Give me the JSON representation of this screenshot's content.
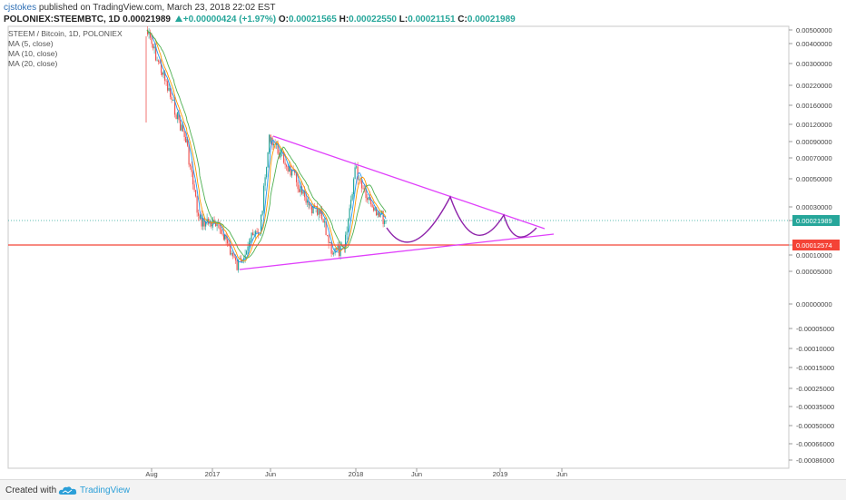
{
  "header": {
    "user": "cjstokes",
    "published_text": " published on TradingView.com, March 23, 2018 22:02 EST",
    "symbol": "POLONIEX:STEEMBTC, 1D",
    "last": "0.00021989",
    "change": "+0.00000424 (+1.97%)",
    "o_label": "O:",
    "o_val": "0.00021565",
    "h_label": "H:",
    "h_val": "0.00022550",
    "l_label": "L:",
    "l_val": "0.00021151",
    "c_label": "C:",
    "c_val": "0.00021989"
  },
  "legend": {
    "title": "STEEM / Bitcoin, 1D, POLONIEX",
    "ma5": "MA (5, close)",
    "ma10": "MA (10, close)",
    "ma20": "MA (20, close)"
  },
  "footer": {
    "created": "Created with",
    "brand": "TradingView"
  },
  "colors": {
    "candle_up": "#26a69a",
    "candle_down": "#ef5350",
    "ma5": "#2196f3",
    "ma10": "#ff9800",
    "ma20": "#4caf50",
    "trendline": "#e040fb",
    "projection": "#8e24aa",
    "support": "#f44336",
    "last_price": "#26a69a"
  },
  "chart_data": {
    "type": "candlestick",
    "title": "STEEM / Bitcoin, 1D, POLONIEX",
    "x_tick_labels": [
      "Aug",
      "2017",
      "Jun",
      "2018",
      "Jun",
      "2019",
      "Jun"
    ],
    "y_tick_labels": [
      "0.00500000",
      "0.00400000",
      "0.00300000",
      "0.00220000",
      "0.00160000",
      "0.00120000",
      "0.00090000",
      "0.00070000",
      "0.00050000",
      "0.00030000",
      "0.00021989",
      "0.00012574",
      "0.00010000",
      "0.00005000",
      "0.00000000",
      "-0.00005000",
      "-0.00010000",
      "-0.00015000",
      "-0.00025000",
      "-0.00035000",
      "-0.00050000",
      "-0.00066000",
      "-0.00086000"
    ],
    "last_price_label": "0.00021989",
    "support_label": "0.00012574",
    "price_path": [
      [
        "Aug 2016",
        0.005
      ],
      [
        "Sep 2016",
        0.0028
      ],
      [
        "Oct 2016",
        0.0016
      ],
      [
        "Nov 2016",
        0.0009
      ],
      [
        "Dec 2016",
        0.00022
      ],
      [
        "Jan 2017",
        0.00021
      ],
      [
        "Feb 2017",
        0.00017
      ],
      [
        "Mar 2017",
        6.3e-05
      ],
      [
        "Apr 2017",
        0.00014
      ],
      [
        "May 2017",
        0.00018
      ],
      [
        "Jun 2017",
        0.001
      ],
      [
        "Jul 2017",
        0.0007
      ],
      [
        "Aug 2017",
        0.0005
      ],
      [
        "Sep 2017",
        0.0003
      ],
      [
        "Oct 2017",
        0.00025
      ],
      [
        "Nov 2017",
        0.00011
      ],
      [
        "Dec 2017",
        0.00011
      ],
      [
        "Jan 2018",
        0.0006
      ],
      [
        "Feb 2018",
        0.00035
      ],
      [
        "Mar 2018",
        0.00022
      ]
    ],
    "ylim": [
      -0.00086,
      0.005
    ],
    "grid": false,
    "legend_position": "top-left"
  }
}
